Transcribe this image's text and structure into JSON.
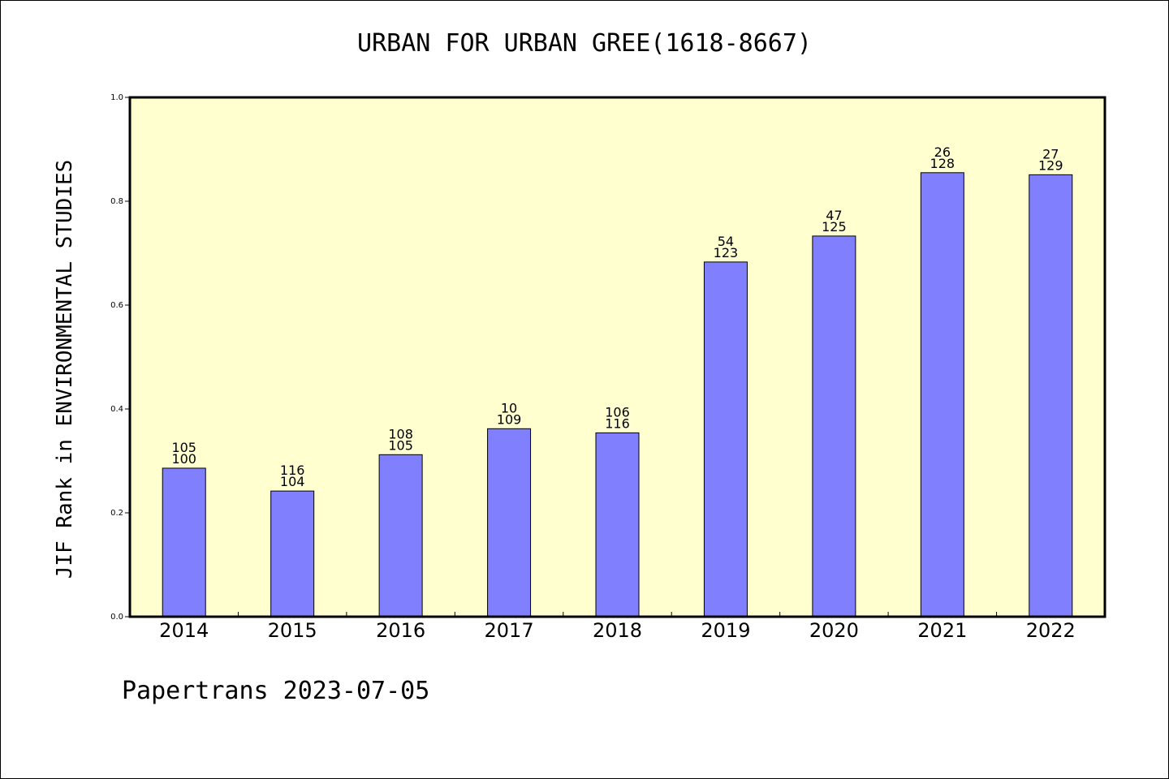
{
  "title": "URBAN FOR URBAN GREE(1618-8667)",
  "footer": "Papertrans 2023-07-05",
  "colors": {
    "plot_background": "#ffffd0",
    "bar_fill": "#8080ff",
    "bar_stroke": "#000000",
    "axis": "#000000"
  },
  "chart_data": {
    "type": "bar",
    "title": "URBAN FOR URBAN GREE(1618-8667)",
    "xlabel": "",
    "ylabel": "JIF Rank in ENVIRONMENTAL STUDIES",
    "ylim": [
      0,
      1.0
    ],
    "yticks": [
      "0.0",
      "0.2",
      "0.4",
      "0.6",
      "0.8",
      "1.0"
    ],
    "grid": false,
    "categories": [
      "2014",
      "2015",
      "2016",
      "2017",
      "2018",
      "2019",
      "2020",
      "2021",
      "2022"
    ],
    "values": [
      0.286,
      0.242,
      0.312,
      0.362,
      0.354,
      0.683,
      0.733,
      0.855,
      0.851
    ],
    "rank_labels": [
      "105",
      "116",
      "108",
      "10",
      "106",
      "54",
      "47",
      "26",
      "27"
    ],
    "total_labels": [
      "100",
      "104",
      "105",
      "109",
      "116",
      "123",
      "125",
      "128",
      "129"
    ]
  }
}
